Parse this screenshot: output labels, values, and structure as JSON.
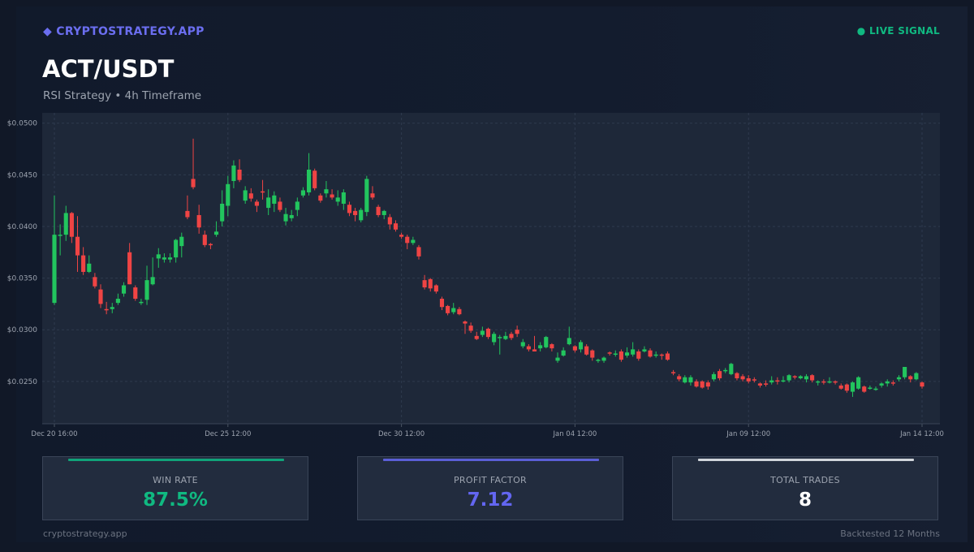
{
  "header": {
    "brand": "◆ CRYPTOSTRATEGY.APP",
    "live_signal": "● LIVE SIGNAL",
    "pair": "ACT/USDT",
    "subtitle": "RSI Strategy  •  4h Timeframe"
  },
  "colors": {
    "up": "#22c55e",
    "down": "#ef4444",
    "accent": "#6366f1",
    "live": "#10b981"
  },
  "chart_data": {
    "type": "candlestick",
    "y_ticks": [
      "$0.0250",
      "$0.0300",
      "$0.0350",
      "$0.0400",
      "$0.0450",
      "$0.0500"
    ],
    "y_tick_values": [
      0.025,
      0.03,
      0.035,
      0.04,
      0.045,
      0.05
    ],
    "ylim": [
      0.0209,
      0.051
    ],
    "x_ticks": [
      "Dec 20 16:00",
      "Dec 25 12:00",
      "Dec 30 12:00",
      "Jan 04 12:00",
      "Jan 09 12:00",
      "Jan 14 12:00"
    ],
    "grid": true,
    "candles_ohlc": [
      [
        0.0326,
        0.0392,
        0.043,
        0.0324
      ],
      [
        0.0392,
        0.0392,
        0.0402,
        0.0372
      ],
      [
        0.0392,
        0.0413,
        0.042,
        0.0386
      ],
      [
        0.0413,
        0.039,
        0.0414,
        0.0384
      ],
      [
        0.039,
        0.0372,
        0.041,
        0.0356
      ],
      [
        0.0372,
        0.0356,
        0.038,
        0.0353
      ],
      [
        0.0356,
        0.0364,
        0.0372,
        0.0355
      ],
      [
        0.0351,
        0.0342,
        0.0355,
        0.034
      ],
      [
        0.0339,
        0.0325,
        0.0344,
        0.0321
      ],
      [
        0.032,
        0.0319,
        0.0327,
        0.0315
      ],
      [
        0.032,
        0.0322,
        0.0326,
        0.0316
      ],
      [
        0.0326,
        0.033,
        0.0335,
        0.0324
      ],
      [
        0.0335,
        0.0343,
        0.0346,
        0.0332
      ],
      [
        0.0375,
        0.0344,
        0.0384,
        0.0344
      ],
      [
        0.0341,
        0.033,
        0.0343,
        0.0328
      ],
      [
        0.0326,
        0.0327,
        0.033,
        0.0324
      ],
      [
        0.0329,
        0.0348,
        0.0362,
        0.0324
      ],
      [
        0.0344,
        0.0351,
        0.037,
        0.0343
      ],
      [
        0.0369,
        0.0373,
        0.0379,
        0.036
      ],
      [
        0.0368,
        0.037,
        0.0374,
        0.0365
      ],
      [
        0.0368,
        0.037,
        0.0374,
        0.0365
      ],
      [
        0.037,
        0.0387,
        0.0388,
        0.0365
      ],
      [
        0.0381,
        0.039,
        0.0394,
        0.037
      ],
      [
        0.0415,
        0.0409,
        0.043,
        0.0407
      ],
      [
        0.0446,
        0.0438,
        0.0485,
        0.0436
      ],
      [
        0.0411,
        0.0399,
        0.0421,
        0.0393
      ],
      [
        0.0392,
        0.0382,
        0.0396,
        0.038
      ],
      [
        0.0383,
        0.0382,
        0.0384,
        0.0378
      ],
      [
        0.0392,
        0.0395,
        0.0405,
        0.039
      ],
      [
        0.0405,
        0.0422,
        0.0435,
        0.04
      ],
      [
        0.042,
        0.0441,
        0.0449,
        0.041
      ],
      [
        0.0444,
        0.0459,
        0.0464,
        0.0437
      ],
      [
        0.0455,
        0.0445,
        0.0465,
        0.0443
      ],
      [
        0.0425,
        0.0435,
        0.0439,
        0.0422
      ],
      [
        0.0432,
        0.0427,
        0.0437,
        0.0424
      ],
      [
        0.0424,
        0.042,
        0.0426,
        0.0414
      ],
      [
        0.0434,
        0.0433,
        0.0445,
        0.0426
      ],
      [
        0.0418,
        0.0428,
        0.0436,
        0.0411
      ],
      [
        0.0422,
        0.043,
        0.0434,
        0.0414
      ],
      [
        0.0424,
        0.0416,
        0.0428,
        0.0414
      ],
      [
        0.0405,
        0.0412,
        0.0418,
        0.0401
      ],
      [
        0.0408,
        0.0411,
        0.0416,
        0.0405
      ],
      [
        0.0416,
        0.0424,
        0.0428,
        0.041
      ],
      [
        0.043,
        0.0435,
        0.0438,
        0.0428
      ],
      [
        0.0433,
        0.0455,
        0.0471,
        0.043
      ],
      [
        0.0454,
        0.0437,
        0.0456,
        0.0435
      ],
      [
        0.043,
        0.0425,
        0.0432,
        0.0423
      ],
      [
        0.0432,
        0.0436,
        0.0444,
        0.0428
      ],
      [
        0.0431,
        0.0428,
        0.0436,
        0.0426
      ],
      [
        0.0424,
        0.0428,
        0.0435,
        0.042
      ],
      [
        0.0422,
        0.0433,
        0.0436,
        0.0416
      ],
      [
        0.0421,
        0.0413,
        0.0424,
        0.041
      ],
      [
        0.0415,
        0.0411,
        0.0418,
        0.0405
      ],
      [
        0.0406,
        0.0416,
        0.0418,
        0.0404
      ],
      [
        0.0414,
        0.0446,
        0.0449,
        0.041
      ],
      [
        0.0432,
        0.0428,
        0.0439,
        0.0426
      ],
      [
        0.0419,
        0.0411,
        0.0421,
        0.0409
      ],
      [
        0.0411,
        0.0415,
        0.0416,
        0.0407
      ],
      [
        0.0409,
        0.0402,
        0.0412,
        0.0397
      ],
      [
        0.0403,
        0.0397,
        0.0406,
        0.0395
      ],
      [
        0.0392,
        0.039,
        0.0394,
        0.0388
      ],
      [
        0.039,
        0.0384,
        0.0392,
        0.0378
      ],
      [
        0.0384,
        0.0387,
        0.039,
        0.0382
      ],
      [
        0.038,
        0.0371,
        0.0382,
        0.0368
      ],
      [
        0.0348,
        0.0341,
        0.0353,
        0.0339
      ],
      [
        0.0349,
        0.034,
        0.035,
        0.0337
      ],
      [
        0.0343,
        0.0337,
        0.0344,
        0.0335
      ],
      [
        0.033,
        0.0322,
        0.0332,
        0.0319
      ],
      [
        0.0323,
        0.0316,
        0.0324,
        0.0314
      ],
      [
        0.0317,
        0.0321,
        0.0326,
        0.0315
      ],
      [
        0.032,
        0.0315,
        0.0322,
        0.0314
      ],
      [
        0.0308,
        0.0306,
        0.0309,
        0.0296
      ],
      [
        0.0304,
        0.0299,
        0.0307,
        0.0297
      ],
      [
        0.0294,
        0.0291,
        0.0298,
        0.029
      ],
      [
        0.0295,
        0.0299,
        0.0303,
        0.0293
      ],
      [
        0.0301,
        0.0293,
        0.0302,
        0.0291
      ],
      [
        0.0288,
        0.0296,
        0.0298,
        0.0285
      ],
      [
        0.0293,
        0.0293,
        0.0295,
        0.0276
      ],
      [
        0.0291,
        0.0294,
        0.0298,
        0.029
      ],
      [
        0.0296,
        0.0292,
        0.0298,
        0.029
      ],
      [
        0.03,
        0.0296,
        0.0304,
        0.0293
      ],
      [
        0.0284,
        0.0288,
        0.0291,
        0.0282
      ],
      [
        0.0284,
        0.0281,
        0.0286,
        0.0279
      ],
      [
        0.0281,
        0.0279,
        0.0294,
        0.0279
      ],
      [
        0.0282,
        0.0285,
        0.0288,
        0.0279
      ],
      [
        0.0283,
        0.0293,
        0.0294,
        0.0282
      ],
      [
        0.0286,
        0.0282,
        0.0287,
        0.0279
      ],
      [
        0.027,
        0.0273,
        0.0278,
        0.0268
      ],
      [
        0.0275,
        0.028,
        0.0283,
        0.0274
      ],
      [
        0.0286,
        0.0292,
        0.0303,
        0.0285
      ],
      [
        0.0284,
        0.028,
        0.0285,
        0.0278
      ],
      [
        0.0281,
        0.0288,
        0.029,
        0.0278
      ],
      [
        0.0284,
        0.0276,
        0.0286,
        0.0275
      ],
      [
        0.028,
        0.0273,
        0.0281,
        0.027
      ],
      [
        0.0271,
        0.0271,
        0.0272,
        0.0268
      ],
      [
        0.027,
        0.0273,
        0.0274,
        0.0268
      ],
      [
        0.0278,
        0.0277,
        0.0279,
        0.0275
      ],
      [
        0.0277,
        0.0277,
        0.028,
        0.0274
      ],
      [
        0.0279,
        0.0271,
        0.0281,
        0.0269
      ],
      [
        0.0275,
        0.0278,
        0.0283,
        0.0273
      ],
      [
        0.0276,
        0.0281,
        0.0288,
        0.0274
      ],
      [
        0.0279,
        0.0272,
        0.0281,
        0.027
      ],
      [
        0.0279,
        0.0281,
        0.0284,
        0.0278
      ],
      [
        0.028,
        0.0274,
        0.0282,
        0.0273
      ],
      [
        0.0276,
        0.0276,
        0.0279,
        0.0273
      ],
      [
        0.0276,
        0.0275,
        0.0277,
        0.0271
      ],
      [
        0.0277,
        0.0271,
        0.0279,
        0.027
      ],
      [
        0.0259,
        0.0258,
        0.0261,
        0.0256
      ],
      [
        0.0255,
        0.0252,
        0.0257,
        0.025
      ],
      [
        0.0249,
        0.0254,
        0.0256,
        0.0248
      ],
      [
        0.0249,
        0.0254,
        0.0256,
        0.0246
      ],
      [
        0.025,
        0.0245,
        0.0252,
        0.0244
      ],
      [
        0.025,
        0.0244,
        0.0251,
        0.0243
      ],
      [
        0.0249,
        0.0245,
        0.0251,
        0.0242
      ],
      [
        0.0252,
        0.0257,
        0.0259,
        0.025
      ],
      [
        0.026,
        0.0253,
        0.0262,
        0.0251
      ],
      [
        0.0261,
        0.0261,
        0.0263,
        0.0258
      ],
      [
        0.0257,
        0.0267,
        0.0268,
        0.0256
      ],
      [
        0.0258,
        0.0253,
        0.0259,
        0.0251
      ],
      [
        0.0255,
        0.0252,
        0.0257,
        0.025
      ],
      [
        0.0253,
        0.025,
        0.0256,
        0.0248
      ],
      [
        0.0252,
        0.0251,
        0.0254,
        0.0249
      ],
      [
        0.0248,
        0.0246,
        0.0249,
        0.0244
      ],
      [
        0.0248,
        0.0247,
        0.0251,
        0.0245
      ],
      [
        0.0249,
        0.0251,
        0.0255,
        0.0247
      ],
      [
        0.0251,
        0.025,
        0.0254,
        0.0247
      ],
      [
        0.0251,
        0.0251,
        0.0255,
        0.0249
      ],
      [
        0.0251,
        0.0256,
        0.0257,
        0.0249
      ],
      [
        0.0255,
        0.0254,
        0.0256,
        0.0252
      ],
      [
        0.0253,
        0.0255,
        0.0256,
        0.0252
      ],
      [
        0.0252,
        0.0255,
        0.0257,
        0.0249
      ],
      [
        0.0256,
        0.0251,
        0.0257,
        0.0249
      ],
      [
        0.0249,
        0.025,
        0.0251,
        0.0246
      ],
      [
        0.025,
        0.0249,
        0.0252,
        0.0247
      ],
      [
        0.025,
        0.025,
        0.0254,
        0.0248
      ],
      [
        0.025,
        0.0249,
        0.0251,
        0.0247
      ],
      [
        0.0246,
        0.0243,
        0.0248,
        0.0242
      ],
      [
        0.0247,
        0.0241,
        0.0248,
        0.0239
      ],
      [
        0.024,
        0.0249,
        0.025,
        0.0235
      ],
      [
        0.0243,
        0.0254,
        0.0255,
        0.0242
      ],
      [
        0.0245,
        0.024,
        0.0246,
        0.0239
      ],
      [
        0.0243,
        0.0244,
        0.0246,
        0.0242
      ],
      [
        0.0242,
        0.0243,
        0.0245,
        0.0241
      ],
      [
        0.0246,
        0.0248,
        0.0249,
        0.0244
      ],
      [
        0.0248,
        0.025,
        0.0252,
        0.0245
      ],
      [
        0.0249,
        0.0248,
        0.0251,
        0.0246
      ],
      [
        0.0252,
        0.0254,
        0.0256,
        0.025
      ],
      [
        0.0254,
        0.0264,
        0.0264,
        0.0252
      ],
      [
        0.0255,
        0.0252,
        0.0256,
        0.0249
      ],
      [
        0.0252,
        0.0258,
        0.0259,
        0.0251
      ],
      [
        0.0249,
        0.0245,
        0.025,
        0.0243
      ]
    ]
  },
  "stats": [
    {
      "label": "WIN RATE",
      "value": "87.5%",
      "color": "#10b981",
      "bar_color": "#10a37a"
    },
    {
      "label": "PROFIT FACTOR",
      "value": "7.12",
      "color": "#6366f1",
      "bar_color": "#5b5fd6"
    },
    {
      "label": "TOTAL TRADES",
      "value": "8",
      "color": "#ffffff",
      "bar_color": "#d1d5db"
    }
  ],
  "footer": {
    "site": "cryptostrategy.app",
    "note": "Backtested 12 Months"
  }
}
